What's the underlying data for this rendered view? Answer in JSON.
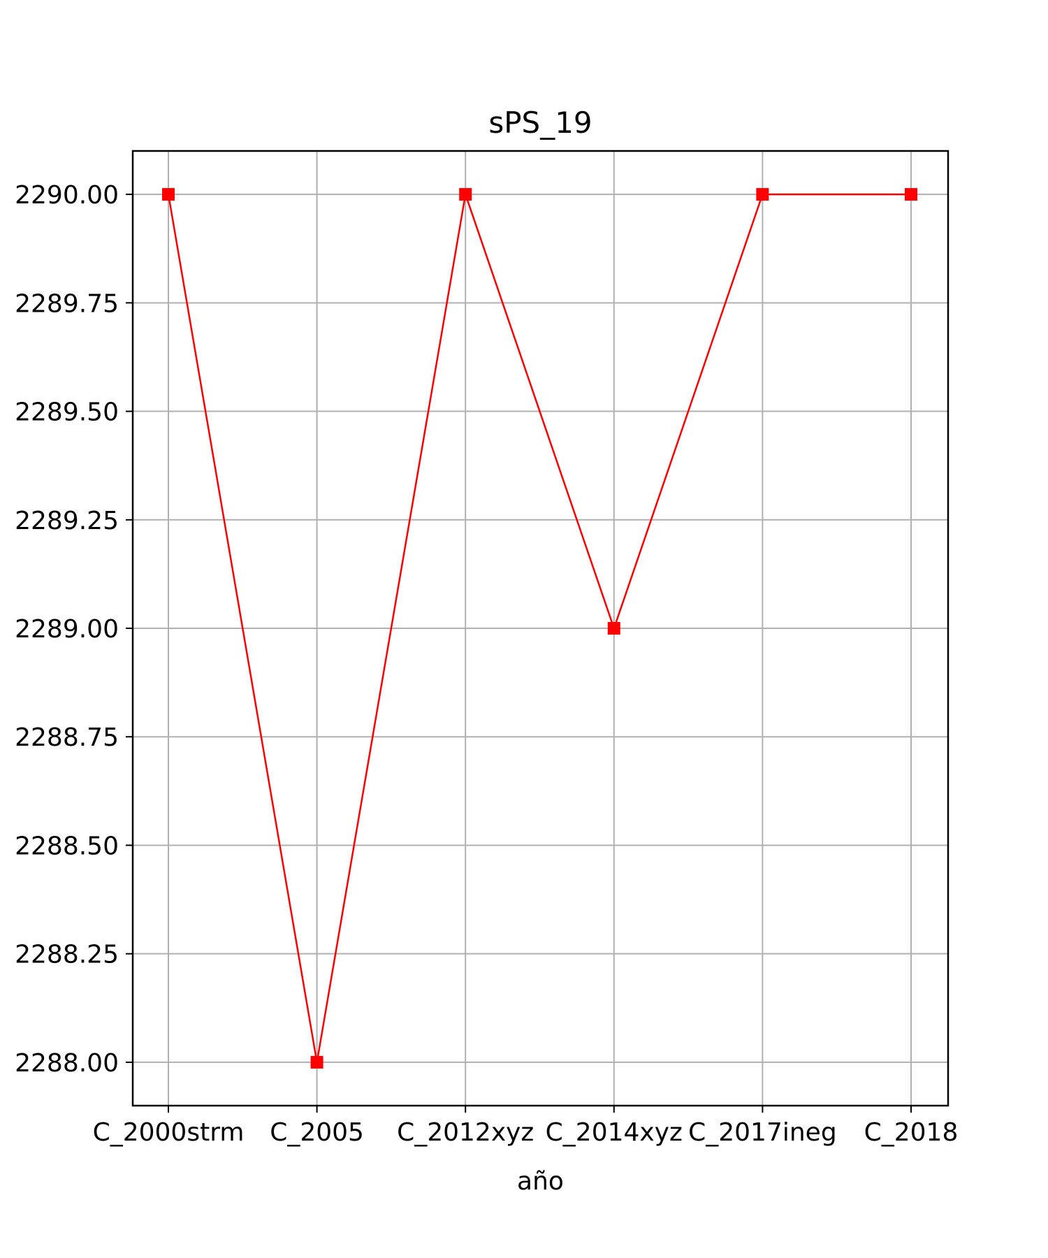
{
  "chart_data": {
    "type": "line",
    "title": "sPS_19",
    "xlabel": "año",
    "ylabel": "",
    "categories": [
      "C_2000strm",
      "C_2005",
      "C_2012xyz",
      "C_2014xyz",
      "C_2017ineg",
      "C_2018"
    ],
    "series": [
      {
        "values": [
          2290.0,
          2288.0,
          2290.0,
          2289.0,
          2290.0,
          2290.0
        ],
        "color": "#ff0000",
        "marker": "square"
      }
    ],
    "ylim": [
      2287.9,
      2290.1
    ],
    "yticks": [
      2288.0,
      2288.25,
      2288.5,
      2288.75,
      2289.0,
      2289.25,
      2289.5,
      2289.75,
      2290.0
    ],
    "ytick_labels": [
      "2288.00",
      "2288.25",
      "2288.50",
      "2288.75",
      "2289.00",
      "2289.25",
      "2289.50",
      "2289.75",
      "2290.00"
    ],
    "grid": true,
    "legend": false
  }
}
